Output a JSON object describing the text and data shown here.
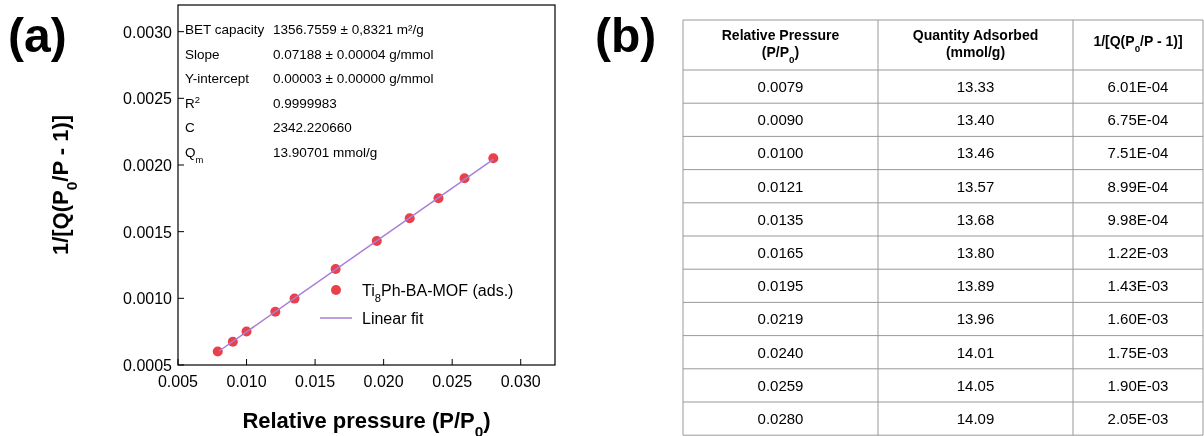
{
  "chart_data": [
    {
      "type": "scatter",
      "title": "(a)",
      "xlabel": "Relative pressure (P/P$_{0}$)",
      "ylabel": "1/[Q(P$_{0}$/P - 1)]",
      "xlim": [
        0.005,
        0.0325
      ],
      "ylim": [
        0.0005,
        0.0032
      ],
      "xticks": [
        0.005,
        {
          "value": 0.01,
          "label": "0.010"
        },
        0.015,
        {
          "value": 0.02,
          "label": "0.020"
        },
        0.025,
        {
          "value": 0.03,
          "label": "0.030"
        }
      ],
      "yticks": [
        {
          "value": 0.0005,
          "label": "0.0005"
        },
        {
          "value": 0.001,
          "label": "0.0010"
        },
        {
          "value": 0.0015,
          "label": "0.0015"
        },
        {
          "value": 0.002,
          "label": "0.0020"
        },
        {
          "value": 0.0025,
          "label": "0.0025"
        },
        {
          "value": 0.003,
          "label": "0.0030"
        }
      ],
      "x": [
        0.0079,
        0.009,
        0.01,
        0.0121,
        0.0135,
        0.0165,
        0.0195,
        0.0219,
        0.024,
        0.0259,
        0.028
      ],
      "series": [
        {
          "name": "Ti$_{8}$Ph-BA-MOF (ads.)",
          "color": "#e8414b",
          "marker": "circle",
          "values": [
            0.000601,
            0.000675,
            0.000751,
            0.000899,
            0.000998,
            0.00122,
            0.00143,
            0.0016,
            0.00175,
            0.0019,
            0.00205
          ]
        },
        {
          "name": "Linear fit",
          "type": "line",
          "color": "#a97fd6",
          "x": [
            0.008,
            0.028
          ],
          "values": [
            0.000605,
            0.002043
          ],
          "line_style": "solid"
        }
      ],
      "legend": "bottom right",
      "grid": false,
      "annotations": [
        "BET capacity",
        "1356.7559 ± 0,8321 m²/g",
        "Slope",
        "0.07188 ± 0.00004 g/mmol",
        "Y-intercept",
        "0.00003 ± 0.00000 g/mmol",
        "R$^{2}$",
        "0.9999983",
        "C",
        "2342.220660",
        "Q$_{m}$",
        "13.90701 mmol/g"
      ]
    },
    {
      "type": "other",
      "title": "(b)",
      "categories": [
        "Relative Pressure (P/P$_{0}$)",
        "Quantity Adsorbed (mmol/g)",
        "1/[Q(P$_{0}$/P - 1)]"
      ],
      "cell_labels": [
        [
          "0.0079",
          "13.33",
          "6.01E-04"
        ],
        [
          "0.0090",
          "13.40",
          "6.75E-04"
        ],
        [
          "0.0100",
          "13.46",
          "7.51E-04"
        ],
        [
          "0.0121",
          "13.57",
          "8.99E-04"
        ],
        [
          "0.0135",
          "13.68",
          "9.98E-04"
        ],
        [
          "0.0165",
          "13.80",
          "1.22E-03"
        ],
        [
          "0.0195",
          "13.89",
          "1.43E-03"
        ],
        [
          "0.0219",
          "13.96",
          "1.60E-03"
        ],
        [
          "0.0240",
          "14.01",
          "1.75E-03"
        ],
        [
          "0.0259",
          "14.05",
          "1.90E-03"
        ],
        [
          "0.0280",
          "14.09",
          "2.05E-03"
        ]
      ]
    }
  ]
}
